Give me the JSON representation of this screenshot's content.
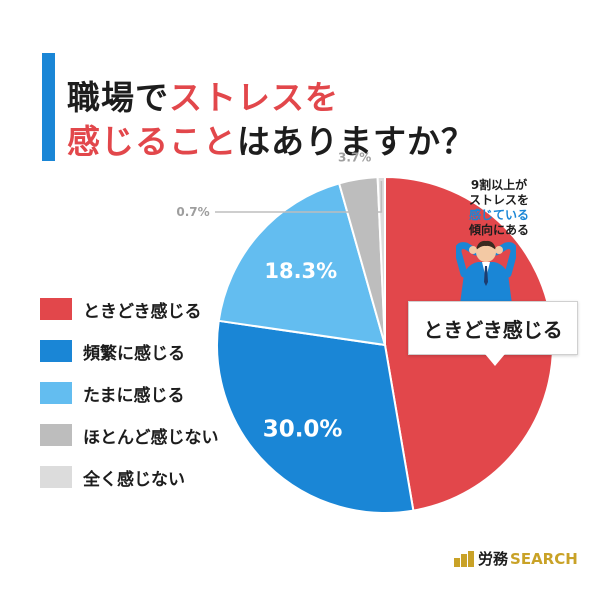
{
  "title": {
    "line1_prefix": "職場で",
    "line1_highlight": "ストレスを",
    "line2_highlight": "感じること",
    "line2_suffix": "はありますか？"
  },
  "colors": {
    "red": "#e2474b",
    "blue": "#1a86d6",
    "light_blue": "#63bdf0",
    "gray": "#bdbdbd",
    "light_gray": "#dcdcdc",
    "accent_blue": "#1a86d6",
    "brand_gold": "#c9a227"
  },
  "chart_data": {
    "type": "pie",
    "title": "職場でストレスを感じることはありますか？",
    "slices": [
      {
        "label": "ときどき感じる",
        "value": 47.3,
        "display": "47.3%",
        "color": "#e2474b"
      },
      {
        "label": "頻繁に感じる",
        "value": 30.0,
        "display": "30.0%",
        "color": "#1a86d6"
      },
      {
        "label": "たまに感じる",
        "value": 18.3,
        "display": "18.3%",
        "color": "#63bdf0"
      },
      {
        "label": "ほとんど感じない",
        "value": 3.7,
        "display": "3.7%",
        "color": "#bdbdbd"
      },
      {
        "label": "全く感じない",
        "value": 0.7,
        "display": "0.7%",
        "color": "#dcdcdc"
      }
    ],
    "start": "12 o'clock",
    "direction": "clockwise",
    "legend_position": "left"
  },
  "legend": [
    {
      "label": "ときどき感じる",
      "color": "#e2474b"
    },
    {
      "label": "頻繁に感じる",
      "color": "#1a86d6"
    },
    {
      "label": "たまに感じる",
      "color": "#63bdf0"
    },
    {
      "label": "ほとんど感じない",
      "color": "#bdbdbd"
    },
    {
      "label": "全く感じない",
      "color": "#dcdcdc"
    }
  ],
  "callout": {
    "box_label": "ときどき感じる",
    "note_line1": "9割以上が",
    "note_line2": "ストレスを",
    "note_line3_blue": "感じている",
    "note_line4": "傾向にある"
  },
  "brand": {
    "jp": "労務",
    "en": "SEARCH"
  }
}
